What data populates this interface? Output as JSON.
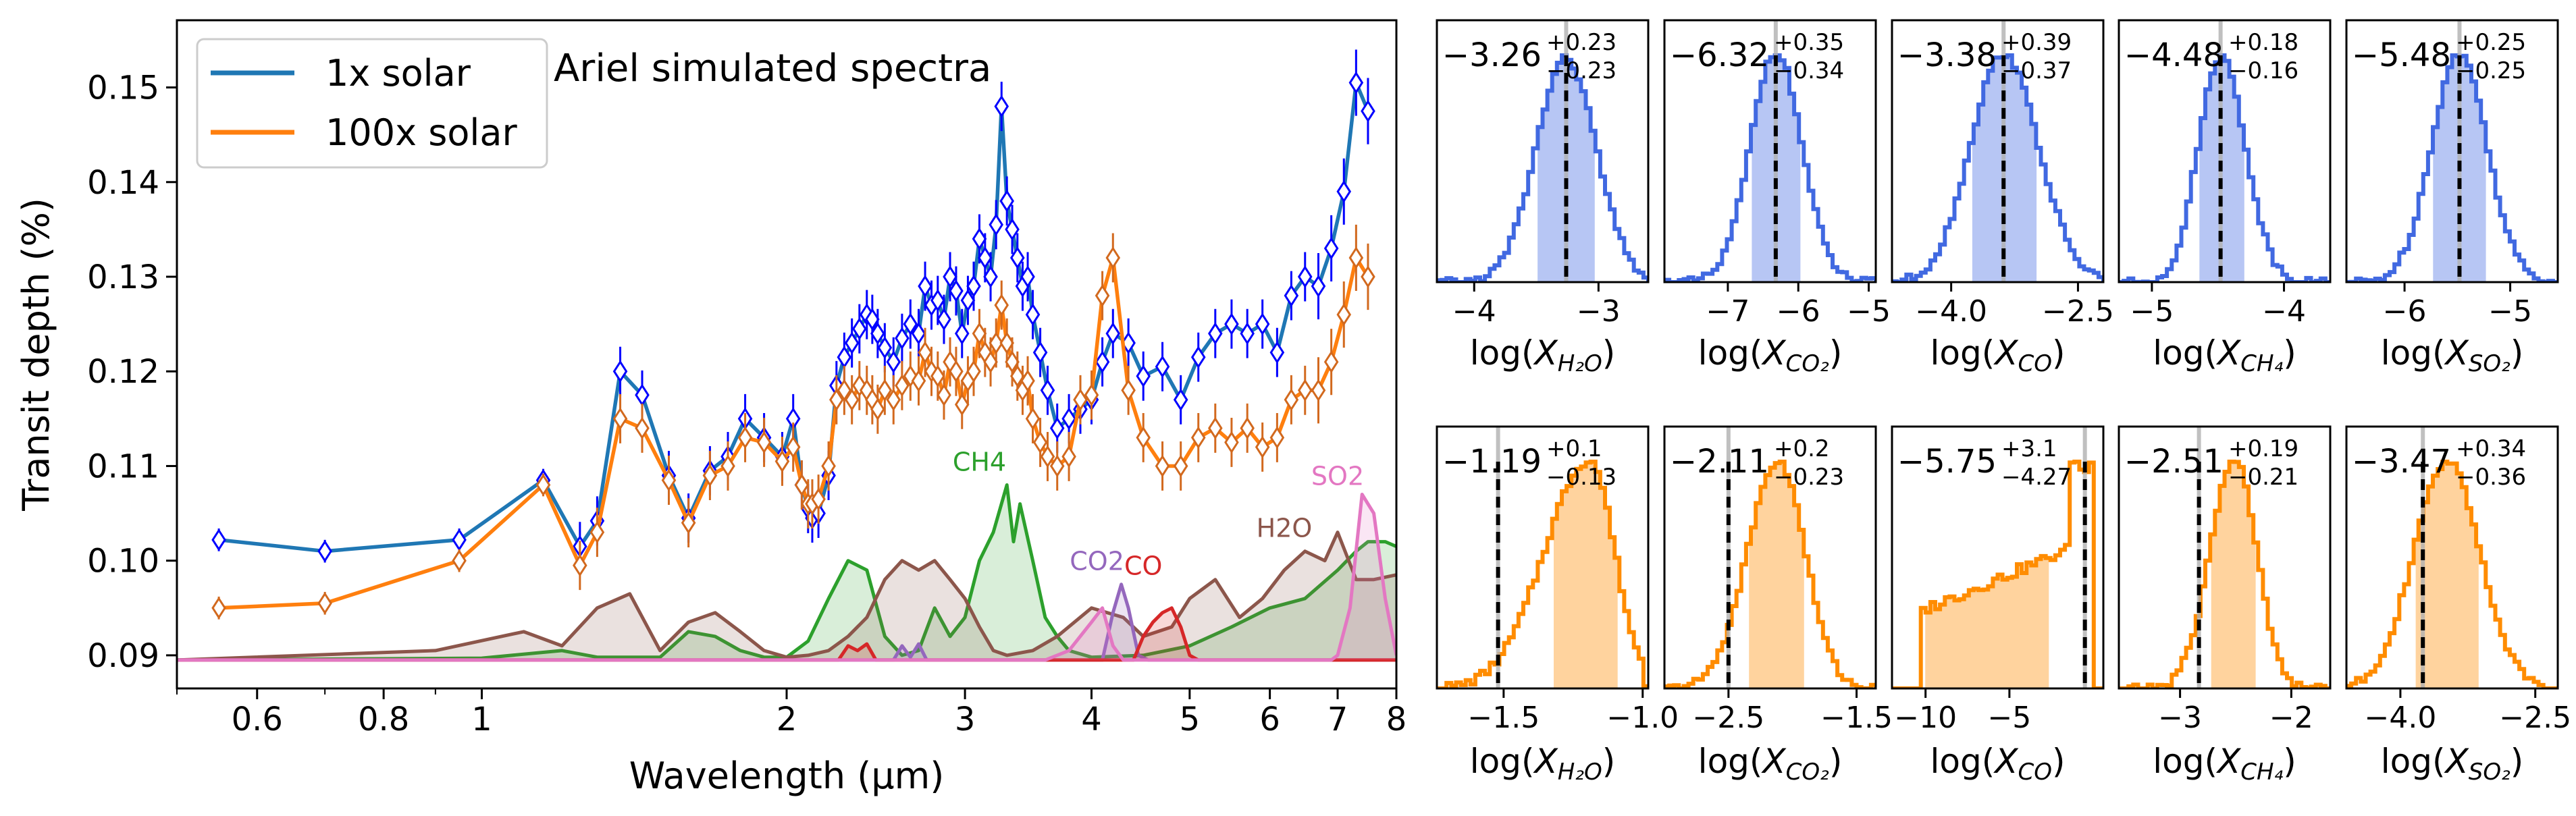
{
  "chart_data": [
    {
      "type": "line",
      "title": "Ariel simulated spectra",
      "xlabel": "Wavelength (µm)",
      "ylabel": "Transit depth (%)",
      "xscale": "log",
      "xlim": [
        0.5,
        8.0
      ],
      "ylim": [
        0.0865,
        0.1571
      ],
      "xticks": [
        {
          "v": 0.6,
          "label": "0.6"
        },
        {
          "v": 0.8,
          "label": "0.8"
        },
        {
          "v": 1,
          "label": "1"
        },
        {
          "v": 2,
          "label": "2"
        },
        {
          "v": 3,
          "label": "3"
        },
        {
          "v": 4,
          "label": "4"
        },
        {
          "v": 5,
          "label": "5"
        },
        {
          "v": 6,
          "label": "6"
        },
        {
          "v": 7,
          "label": "7"
        },
        {
          "v": 8,
          "label": "8"
        }
      ],
      "yticks": [
        {
          "v": 0.09,
          "label": "0.09"
        },
        {
          "v": 0.1,
          "label": "0.10"
        },
        {
          "v": 0.11,
          "label": "0.11"
        },
        {
          "v": 0.12,
          "label": "0.12"
        },
        {
          "v": 0.13,
          "label": "0.13"
        },
        {
          "v": 0.14,
          "label": "0.14"
        },
        {
          "v": 0.15,
          "label": "0.15"
        }
      ],
      "grid": false,
      "legend_position": "top-left",
      "series": [
        {
          "name": "1x solar",
          "color": "#1f77b4",
          "marker_color": "#0000ff",
          "marker": "diamond",
          "x": [
            0.55,
            0.7,
            0.95,
            1.15,
            1.25,
            1.3,
            1.37,
            1.44,
            1.53,
            1.6,
            1.68,
            1.75,
            1.82,
            1.9,
            1.98,
            2.03,
            2.07,
            2.1,
            2.12,
            2.15,
            2.2,
            2.24,
            2.28,
            2.32,
            2.36,
            2.4,
            2.43,
            2.46,
            2.5,
            2.55,
            2.6,
            2.65,
            2.7,
            2.74,
            2.78,
            2.82,
            2.86,
            2.9,
            2.94,
            2.98,
            3.02,
            3.06,
            3.1,
            3.14,
            3.18,
            3.22,
            3.26,
            3.3,
            3.34,
            3.38,
            3.42,
            3.46,
            3.5,
            3.56,
            3.62,
            3.7,
            3.8,
            3.9,
            4.0,
            4.1,
            4.2,
            4.35,
            4.5,
            4.7,
            4.9,
            5.1,
            5.3,
            5.5,
            5.7,
            5.9,
            6.1,
            6.3,
            6.5,
            6.7,
            6.9,
            7.1,
            7.3,
            7.5
          ],
          "y": [
            0.1022,
            0.101,
            0.1022,
            0.1085,
            0.1015,
            0.1042,
            0.12,
            0.1175,
            0.109,
            0.1045,
            0.1095,
            0.111,
            0.115,
            0.113,
            0.111,
            0.115,
            0.108,
            0.1055,
            0.1045,
            0.105,
            0.109,
            0.1185,
            0.1215,
            0.123,
            0.1245,
            0.126,
            0.1255,
            0.124,
            0.1225,
            0.121,
            0.1235,
            0.125,
            0.124,
            0.129,
            0.127,
            0.1275,
            0.1255,
            0.13,
            0.1285,
            0.124,
            0.1275,
            0.129,
            0.134,
            0.132,
            0.13,
            0.1355,
            0.148,
            0.138,
            0.135,
            0.132,
            0.129,
            0.13,
            0.126,
            0.122,
            0.118,
            0.114,
            0.115,
            0.116,
            0.117,
            0.121,
            0.124,
            0.123,
            0.1195,
            0.1205,
            0.117,
            0.1215,
            0.124,
            0.125,
            0.124,
            0.125,
            0.122,
            0.128,
            0.13,
            0.129,
            0.133,
            0.139,
            0.1505,
            0.1475
          ]
        },
        {
          "name": "100x solar",
          "color": "#ff7f0e",
          "marker_color": "#d2691e",
          "marker": "diamond",
          "x": [
            0.55,
            0.7,
            0.95,
            1.15,
            1.25,
            1.3,
            1.37,
            1.44,
            1.53,
            1.6,
            1.68,
            1.75,
            1.82,
            1.9,
            1.98,
            2.03,
            2.07,
            2.1,
            2.12,
            2.15,
            2.2,
            2.24,
            2.28,
            2.32,
            2.36,
            2.4,
            2.43,
            2.46,
            2.5,
            2.55,
            2.6,
            2.65,
            2.7,
            2.74,
            2.78,
            2.82,
            2.86,
            2.9,
            2.94,
            2.98,
            3.02,
            3.06,
            3.1,
            3.14,
            3.18,
            3.22,
            3.26,
            3.3,
            3.34,
            3.38,
            3.42,
            3.46,
            3.5,
            3.56,
            3.62,
            3.7,
            3.8,
            3.9,
            4.0,
            4.1,
            4.2,
            4.35,
            4.5,
            4.7,
            4.9,
            5.1,
            5.3,
            5.5,
            5.7,
            5.9,
            6.1,
            6.3,
            6.5,
            6.7,
            6.9,
            7.1,
            7.3,
            7.5
          ],
          "y": [
            0.095,
            0.0955,
            0.1,
            0.108,
            0.0995,
            0.103,
            0.115,
            0.114,
            0.1085,
            0.104,
            0.109,
            0.11,
            0.113,
            0.1125,
            0.1105,
            0.112,
            0.108,
            0.106,
            0.106,
            0.1065,
            0.11,
            0.117,
            0.118,
            0.117,
            0.1185,
            0.118,
            0.117,
            0.116,
            0.118,
            0.117,
            0.1185,
            0.1195,
            0.119,
            0.122,
            0.12,
            0.1195,
            0.1175,
            0.121,
            0.12,
            0.1165,
            0.119,
            0.12,
            0.124,
            0.122,
            0.121,
            0.123,
            0.127,
            0.123,
            0.121,
            0.1195,
            0.118,
            0.119,
            0.115,
            0.1125,
            0.111,
            0.11,
            0.111,
            0.117,
            0.1175,
            0.128,
            0.132,
            0.118,
            0.113,
            0.11,
            0.11,
            0.113,
            0.114,
            0.1125,
            0.114,
            0.112,
            0.113,
            0.117,
            0.118,
            0.118,
            0.121,
            0.126,
            0.132,
            0.13
          ]
        }
      ],
      "contributions": [
        {
          "label": "CH4",
          "color": "#2ca02c",
          "x": [
            0.5,
            1.0,
            1.2,
            1.3,
            1.5,
            1.6,
            1.7,
            1.8,
            1.9,
            2.0,
            2.1,
            2.2,
            2.3,
            2.4,
            2.5,
            2.6,
            2.7,
            2.8,
            2.9,
            3.0,
            3.1,
            3.2,
            3.3,
            3.35,
            3.4,
            3.5,
            3.6,
            3.7,
            3.8,
            4.0,
            4.5,
            5.0,
            5.5,
            6.0,
            6.5,
            7.0,
            7.3,
            7.5,
            7.8,
            8.0
          ],
          "y": [
            0.0895,
            0.0897,
            0.0905,
            0.0898,
            0.0898,
            0.0925,
            0.092,
            0.0905,
            0.0898,
            0.0898,
            0.0915,
            0.096,
            0.1,
            0.099,
            0.092,
            0.09,
            0.0905,
            0.095,
            0.092,
            0.094,
            0.1,
            0.103,
            0.108,
            0.102,
            0.106,
            0.1,
            0.094,
            0.092,
            0.0905,
            0.0898,
            0.09,
            0.091,
            0.093,
            0.095,
            0.096,
            0.099,
            0.101,
            0.102,
            0.102,
            0.1015
          ]
        },
        {
          "label": "H2O",
          "color": "#8c564b",
          "x": [
            0.5,
            0.9,
            1.1,
            1.2,
            1.3,
            1.4,
            1.5,
            1.6,
            1.7,
            1.8,
            1.9,
            2.0,
            2.1,
            2.2,
            2.3,
            2.4,
            2.5,
            2.6,
            2.7,
            2.8,
            2.9,
            3.0,
            3.1,
            3.2,
            3.3,
            3.5,
            3.7,
            4.0,
            4.3,
            4.5,
            4.8,
            5.0,
            5.3,
            5.6,
            5.9,
            6.2,
            6.5,
            6.8,
            7.0,
            7.3,
            7.6,
            8.0
          ],
          "y": [
            0.0895,
            0.0905,
            0.0925,
            0.091,
            0.095,
            0.0965,
            0.0905,
            0.0935,
            0.0945,
            0.0925,
            0.0905,
            0.0898,
            0.09,
            0.0905,
            0.092,
            0.094,
            0.098,
            0.1,
            0.099,
            0.1,
            0.098,
            0.096,
            0.093,
            0.0905,
            0.09,
            0.0905,
            0.092,
            0.095,
            0.094,
            0.092,
            0.093,
            0.096,
            0.098,
            0.094,
            0.096,
            0.099,
            0.101,
            0.1,
            0.103,
            0.098,
            0.098,
            0.0985
          ]
        },
        {
          "label": "CO2",
          "color": "#9467bd",
          "x": [
            0.5,
            2.5,
            2.55,
            2.6,
            2.65,
            2.7,
            2.75,
            4.1,
            4.2,
            4.28,
            4.35,
            4.45,
            4.55,
            8.0
          ],
          "y": [
            0.0895,
            0.0895,
            0.0895,
            0.091,
            0.0898,
            0.0912,
            0.0895,
            0.0895,
            0.0945,
            0.0975,
            0.095,
            0.09,
            0.0895,
            0.0895
          ]
        },
        {
          "label": "CO",
          "color": "#d62728",
          "x": [
            0.5,
            2.25,
            2.3,
            2.35,
            2.4,
            2.45,
            4.4,
            4.5,
            4.6,
            4.7,
            4.8,
            4.9,
            5.0,
            5.1,
            8.0
          ],
          "y": [
            0.0895,
            0.0895,
            0.091,
            0.0905,
            0.0912,
            0.0895,
            0.0895,
            0.092,
            0.0935,
            0.0945,
            0.095,
            0.093,
            0.09,
            0.0895,
            0.0895
          ]
        },
        {
          "label": "SO2",
          "color": "#e377c2",
          "x": [
            0.5,
            3.6,
            3.8,
            4.0,
            4.1,
            4.2,
            4.3,
            6.9,
            7.0,
            7.2,
            7.4,
            7.6,
            7.8,
            8.0
          ],
          "y": [
            0.0895,
            0.0895,
            0.0905,
            0.0935,
            0.095,
            0.091,
            0.0895,
            0.0895,
            0.09,
            0.095,
            0.107,
            0.105,
            0.096,
            0.09
          ]
        }
      ],
      "annotations": [
        {
          "text": "CH4",
          "x": 3.1,
          "y": 0.1095,
          "color": "#2ca02c"
        },
        {
          "text": "CO2",
          "x": 4.05,
          "y": 0.099,
          "color": "#9467bd"
        },
        {
          "text": "CO",
          "x": 4.5,
          "y": 0.0985,
          "color": "#d62728"
        },
        {
          "text": "H2O",
          "x": 6.2,
          "y": 0.1025,
          "color": "#8c564b"
        },
        {
          "text": "SO2",
          "x": 7.0,
          "y": 0.108,
          "color": "#e377c2"
        }
      ]
    },
    {
      "type": "histogram",
      "row": "1x solar",
      "color": "#4169e1",
      "panels": [
        {
          "label_main": "−3.26",
          "label_sup": "+0.23",
          "label_sub": "−0.23",
          "var": "H₂O",
          "xlim": [
            -4.3,
            -2.6
          ],
          "xticks": [
            {
              "v": -4,
              "label": "−4"
            },
            {
              "v": -3,
              "label": "−3"
            }
          ],
          "median": -3.26,
          "minus": 0.23,
          "plus": 0.23,
          "truth": -3.26
        },
        {
          "label_main": "−6.32",
          "label_sup": "+0.35",
          "label_sub": "−0.34",
          "var": "CO₂",
          "xlim": [
            -7.9,
            -4.9
          ],
          "xticks": [
            {
              "v": -7,
              "label": "−7"
            },
            {
              "v": -6,
              "label": "−6"
            },
            {
              "v": -5,
              "label": "−5"
            }
          ],
          "median": -6.32,
          "minus": 0.34,
          "plus": 0.35,
          "truth": -6.32
        },
        {
          "label_main": "−3.38",
          "label_sup": "+0.39",
          "label_sub": "−0.37",
          "var": "CO",
          "xlim": [
            -4.7,
            -2.2
          ],
          "xticks": [
            {
              "v": -4.0,
              "label": "−4.0"
            },
            {
              "v": -2.5,
              "label": "−2.5"
            }
          ],
          "median": -3.38,
          "minus": 0.37,
          "plus": 0.39,
          "truth": -3.38
        },
        {
          "label_main": "−4.48",
          "label_sup": "+0.18",
          "label_sub": "−0.16",
          "var": "CH₄",
          "xlim": [
            -5.25,
            -3.65
          ],
          "xticks": [
            {
              "v": -5,
              "label": "−5"
            },
            {
              "v": -4,
              "label": "−4"
            }
          ],
          "median": -4.48,
          "minus": 0.16,
          "plus": 0.18,
          "truth": -4.48
        },
        {
          "label_main": "−5.48",
          "label_sup": "+0.25",
          "label_sub": "−0.25",
          "var": "SO₂",
          "xlim": [
            -6.55,
            -4.55
          ],
          "xticks": [
            {
              "v": -6,
              "label": "−6"
            },
            {
              "v": -5,
              "label": "−5"
            }
          ],
          "median": -5.48,
          "minus": 0.25,
          "plus": 0.25,
          "truth": -5.48
        }
      ]
    },
    {
      "type": "histogram",
      "row": "100x solar",
      "color": "#ff8c00",
      "panels": [
        {
          "label_main": "−1.19",
          "label_sup": "+0.1",
          "label_sub": "−0.13",
          "var": "H₂O",
          "xlim": [
            -1.74,
            -0.98
          ],
          "xticks": [
            {
              "v": -1.5,
              "label": "−1.5"
            },
            {
              "v": -1.0,
              "label": "−1.0"
            }
          ],
          "median": -1.19,
          "minus": 0.13,
          "plus": 0.1,
          "truth": -1.52
        },
        {
          "label_main": "−2.11",
          "label_sup": "+0.2",
          "label_sub": "−0.23",
          "var": "CO₂",
          "xlim": [
            -3.0,
            -1.35
          ],
          "xticks": [
            {
              "v": -2.5,
              "label": "−2.5"
            },
            {
              "v": -1.5,
              "label": "−1.5"
            }
          ],
          "median": -2.11,
          "minus": 0.23,
          "plus": 0.2,
          "truth": -2.5
        },
        {
          "label_main": "−5.75",
          "label_sup": "+3.1",
          "label_sub": "−4.27",
          "var": "CO",
          "xlim": [
            -12.0,
            0.6
          ],
          "xticks": [
            {
              "v": -10,
              "label": "−10"
            },
            {
              "v": -5,
              "label": "−5"
            }
          ],
          "median": -5.75,
          "minus": 4.27,
          "plus": 3.1,
          "truth": -0.5
        },
        {
          "label_main": "−2.51",
          "label_sup": "+0.19",
          "label_sub": "−0.21",
          "var": "CH₄",
          "xlim": [
            -3.55,
            -1.65
          ],
          "xticks": [
            {
              "v": -3,
              "label": "−3"
            },
            {
              "v": -2,
              "label": "−2"
            }
          ],
          "median": -2.51,
          "minus": 0.21,
          "plus": 0.19,
          "truth": -2.83
        },
        {
          "label_main": "−3.47",
          "label_sup": "+0.34",
          "label_sub": "−0.36",
          "var": "SO₂",
          "xlim": [
            -4.6,
            -2.25
          ],
          "xticks": [
            {
              "v": -4.0,
              "label": "−4.0"
            },
            {
              "v": -2.5,
              "label": "−2.5"
            }
          ],
          "median": -3.47,
          "minus": 0.36,
          "plus": 0.34,
          "truth": -3.75
        }
      ]
    }
  ]
}
